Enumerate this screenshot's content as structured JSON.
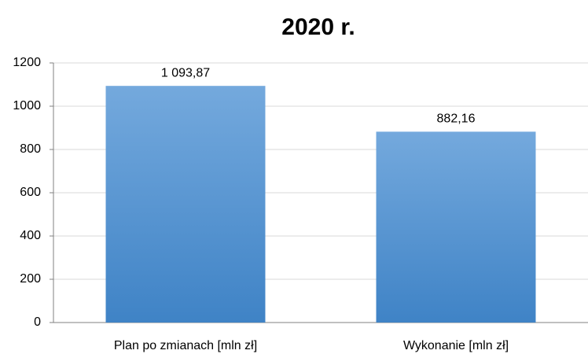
{
  "chart_data": {
    "type": "bar",
    "title": "2020 r.",
    "categories": [
      "Plan po zmianach [mln zł]",
      "Wykonanie [mln zł]"
    ],
    "values": [
      1093.87,
      882.16
    ],
    "value_labels": [
      "1 093,87",
      "882,16"
    ],
    "color": "#5b9bd5",
    "ylim": [
      0,
      1200
    ],
    "yticks": [
      0,
      200,
      400,
      600,
      800,
      1000,
      1200
    ],
    "grid": true
  }
}
